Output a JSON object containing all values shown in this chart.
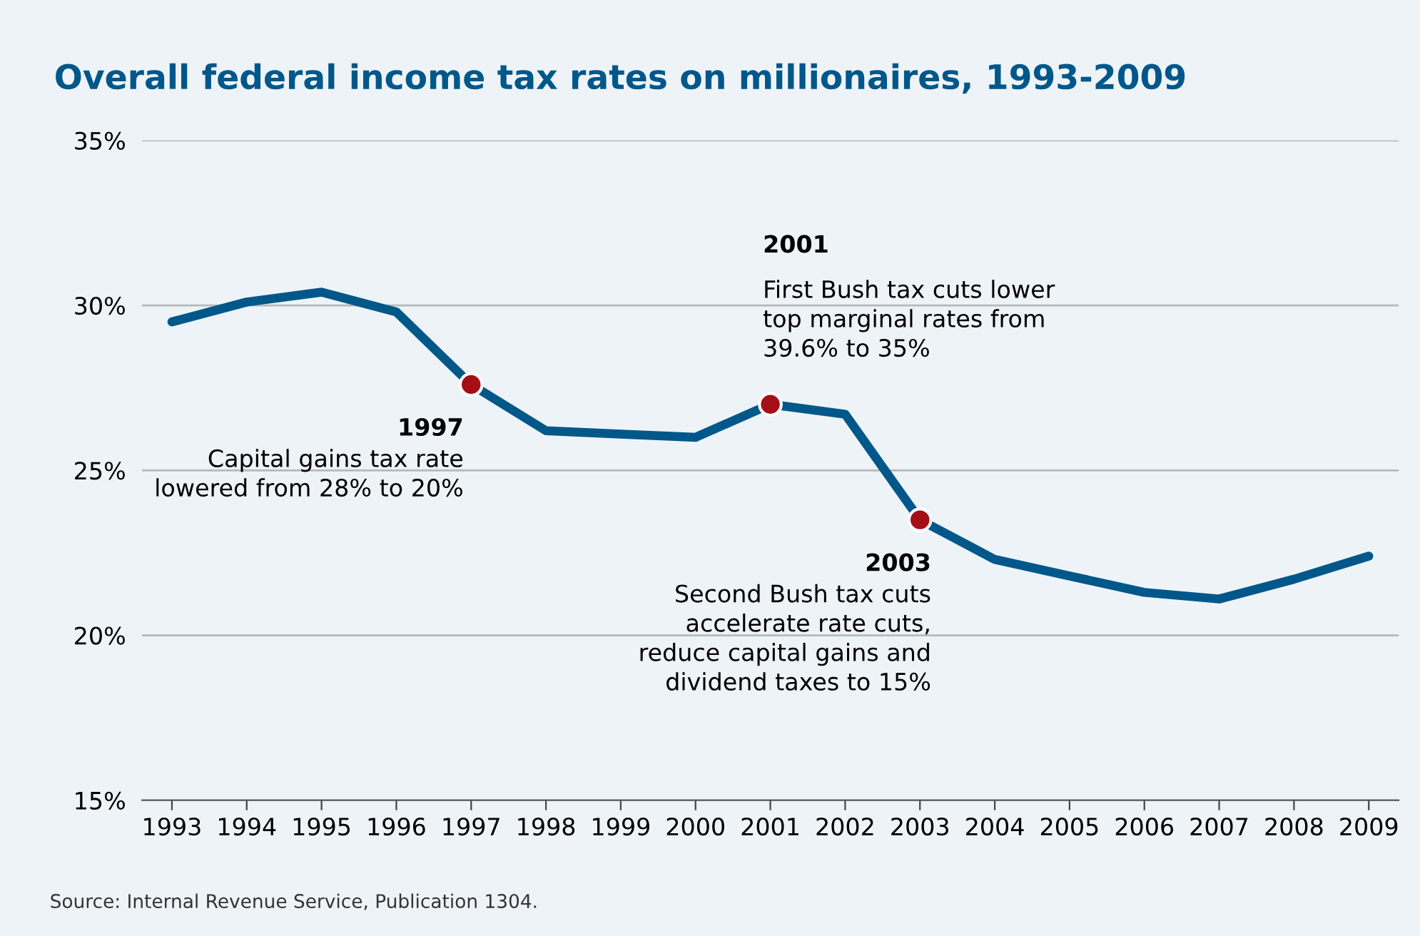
{
  "chart_data": {
    "type": "line",
    "title": "Overall federal income tax rates on millionaires, 1993-2009",
    "categories": [
      "1993",
      "1994",
      "1995",
      "1996",
      "1997",
      "1998",
      "1999",
      "2000",
      "2001",
      "2002",
      "2003",
      "2004",
      "2005",
      "2006",
      "2007",
      "2008",
      "2009"
    ],
    "series": [
      {
        "color": "#00578a",
        "values": [
          29.5,
          30.1,
          30.4,
          29.8,
          27.6,
          26.2,
          26.1,
          26.0,
          27.0,
          26.7,
          23.5,
          22.3,
          21.8,
          21.3,
          21.1,
          21.7,
          22.4
        ]
      }
    ],
    "ylim": [
      15,
      35
    ],
    "yticks": [
      {
        "value": 15,
        "label": "15%"
      },
      {
        "value": 20,
        "label": "20%"
      },
      {
        "value": 25,
        "label": "25%"
      },
      {
        "value": 30,
        "label": "30%"
      },
      {
        "value": 35,
        "label": "35%"
      }
    ],
    "grid": "y",
    "legend": false,
    "marker": "none",
    "line_style": "solid",
    "annotations": [
      {
        "text": "1997\nCapital gains tax rate\nlowered from 28% to 20%",
        "x": "1997",
        "y": 27.6
      },
      {
        "text": "2001\nFirst Bush tax cuts lower\ntop marginal rates from\n39.6% to 35%",
        "x": "2001",
        "y": 27.0
      },
      {
        "text": "2003\nSecond Bush tax cuts\naccelerate rate cuts,\nreduce capital gains and\ndividend taxes to 15%",
        "x": "2003",
        "y": 23.5
      },
      "Source: Internal Revenue Service, Publication 1304."
    ]
  }
}
